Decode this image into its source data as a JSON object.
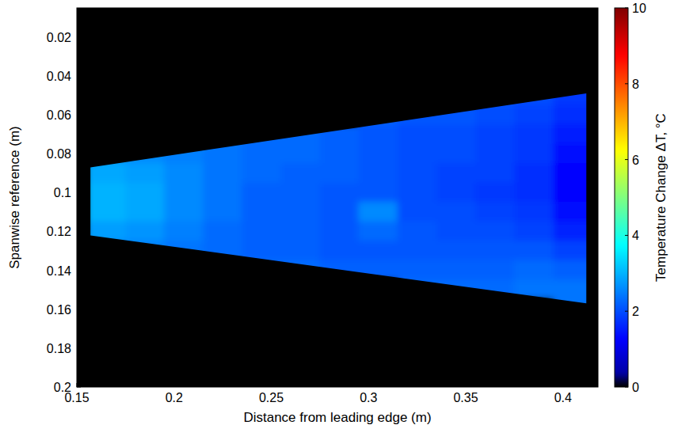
{
  "chart_data": {
    "type": "heatmap",
    "x_label": "Distance from leading edge (m)",
    "y_label": "Spanwise reference (m)",
    "xlim": [
      0.15,
      0.418
    ],
    "xticks": [
      0.15,
      0.2,
      0.25,
      0.3,
      0.35,
      0.4
    ],
    "ylim": [
      0.005,
      0.2
    ],
    "yticks": [
      0.02,
      0.04,
      0.06,
      0.08,
      0.1,
      0.12,
      0.14,
      0.16,
      0.18,
      0.2
    ],
    "region": {
      "x": [
        0.157,
        0.412,
        0.412,
        0.157
      ],
      "y": [
        0.087,
        0.049,
        0.157,
        0.122
      ]
    },
    "x_edges": [
      0.155,
      0.175,
      0.195,
      0.215,
      0.235,
      0.255,
      0.275,
      0.295,
      0.315,
      0.335,
      0.355,
      0.375,
      0.395,
      0.415
    ],
    "y_edges": [
      0.045,
      0.055,
      0.065,
      0.075,
      0.085,
      0.095,
      0.105,
      0.115,
      0.125,
      0.135,
      0.145,
      0.155,
      0.165
    ],
    "cells": [
      [
        null,
        null,
        null,
        null,
        null,
        null,
        null,
        null,
        null,
        null,
        2.1,
        2.0,
        1.8
      ],
      [
        null,
        null,
        null,
        null,
        null,
        null,
        null,
        2.2,
        2.1,
        2.1,
        2.0,
        1.9,
        1.7
      ],
      [
        null,
        null,
        null,
        2.4,
        2.3,
        2.3,
        2.2,
        2.1,
        2.0,
        2.0,
        1.9,
        1.8,
        1.5
      ],
      [
        2.7,
        2.6,
        2.5,
        2.4,
        2.3,
        2.3,
        2.2,
        2.1,
        2.0,
        2.0,
        1.9,
        1.8,
        1.4
      ],
      [
        2.9,
        2.8,
        2.6,
        2.4,
        2.3,
        2.2,
        2.2,
        2.1,
        2.0,
        1.9,
        1.9,
        1.7,
        1.3
      ],
      [
        3.0,
        2.9,
        2.6,
        2.4,
        2.2,
        2.2,
        2.1,
        2.1,
        2.0,
        1.9,
        1.8,
        1.7,
        1.3
      ],
      [
        3.0,
        2.9,
        2.6,
        2.4,
        2.2,
        2.2,
        2.1,
        2.6,
        2.0,
        2.0,
        1.9,
        1.8,
        1.4
      ],
      [
        2.8,
        2.7,
        2.5,
        2.3,
        2.2,
        2.2,
        2.1,
        2.3,
        2.1,
        2.0,
        2.0,
        1.9,
        1.6
      ],
      [
        2.5,
        2.5,
        2.4,
        2.3,
        2.2,
        2.2,
        2.1,
        2.1,
        2.1,
        2.1,
        2.1,
        2.1,
        1.9
      ],
      [
        null,
        null,
        null,
        null,
        2.3,
        2.3,
        2.2,
        2.2,
        2.2,
        2.2,
        2.2,
        2.3,
        2.2
      ],
      [
        null,
        null,
        null,
        null,
        null,
        null,
        null,
        null,
        2.3,
        2.3,
        2.3,
        2.4,
        2.4
      ],
      [
        null,
        null,
        null,
        null,
        null,
        null,
        null,
        null,
        null,
        null,
        null,
        null,
        2.4
      ]
    ],
    "colorbar": {
      "label": "Temperature Change ΔT, °C",
      "range": [
        0,
        10
      ],
      "ticks": [
        0,
        2,
        4,
        6,
        8,
        10
      ]
    }
  }
}
